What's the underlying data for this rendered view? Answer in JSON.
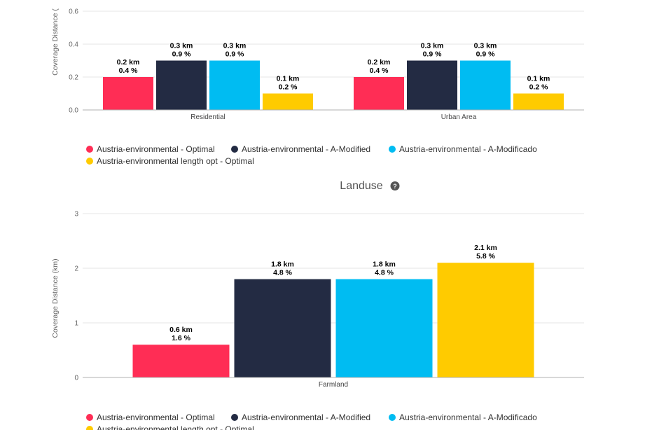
{
  "colors": {
    "optimal": "#ff2d55",
    "a_modified": "#232b43",
    "a_modificado": "#00bcf2",
    "length_opt": "#ffcb00"
  },
  "chart_data": [
    {
      "type": "bar",
      "title": "",
      "ylabel": "Coverage Distance (",
      "ylim": [
        0,
        0.6
      ],
      "yticks": [
        "0.0",
        "0.2",
        "0.4",
        "0.6"
      ],
      "categories": [
        "Residential",
        "Urban Area"
      ],
      "series": [
        {
          "name": "Austria-environmental - Optimal",
          "values": [
            0.2,
            0.2
          ],
          "labels": [
            [
              "0.2 km",
              "0.4 %"
            ],
            [
              "0.2 km",
              "0.4 %"
            ]
          ]
        },
        {
          "name": "Austria-environmental - A-Modified",
          "values": [
            0.3,
            0.3
          ],
          "labels": [
            [
              "0.3 km",
              "0.9 %"
            ],
            [
              "0.3 km",
              "0.9 %"
            ]
          ]
        },
        {
          "name": "Austria-environmental - A-Modificado",
          "values": [
            0.3,
            0.3
          ],
          "labels": [
            [
              "0.3 km",
              "0.9 %"
            ],
            [
              "0.3 km",
              "0.9 %"
            ]
          ]
        },
        {
          "name": "Austria-environmental length opt - Optimal",
          "values": [
            0.1,
            0.1
          ],
          "labels": [
            [
              "0.1 km",
              "0.2 %"
            ],
            [
              "0.1 km",
              "0.2 %"
            ]
          ]
        }
      ],
      "legend": "bottom-left",
      "grid": true
    },
    {
      "type": "bar",
      "title": "Landuse",
      "ylabel": "Coverage Distance (km)",
      "ylim": [
        0,
        3
      ],
      "yticks": [
        "0",
        "1",
        "2",
        "3"
      ],
      "categories": [
        "Farmland"
      ],
      "series": [
        {
          "name": "Austria-environmental - Optimal",
          "values": [
            0.6
          ],
          "labels": [
            [
              "0.6 km",
              "1.6 %"
            ]
          ]
        },
        {
          "name": "Austria-environmental - A-Modified",
          "values": [
            1.8
          ],
          "labels": [
            [
              "1.8 km",
              "4.8 %"
            ]
          ]
        },
        {
          "name": "Austria-environmental - A-Modificado",
          "values": [
            1.8
          ],
          "labels": [
            [
              "1.8 km",
              "4.8 %"
            ]
          ]
        },
        {
          "name": "Austria-environmental length opt - Optimal",
          "values": [
            2.1
          ],
          "labels": [
            [
              "2.1 km",
              "5.8 %"
            ]
          ]
        }
      ],
      "legend": "bottom-left",
      "grid": true
    }
  ]
}
